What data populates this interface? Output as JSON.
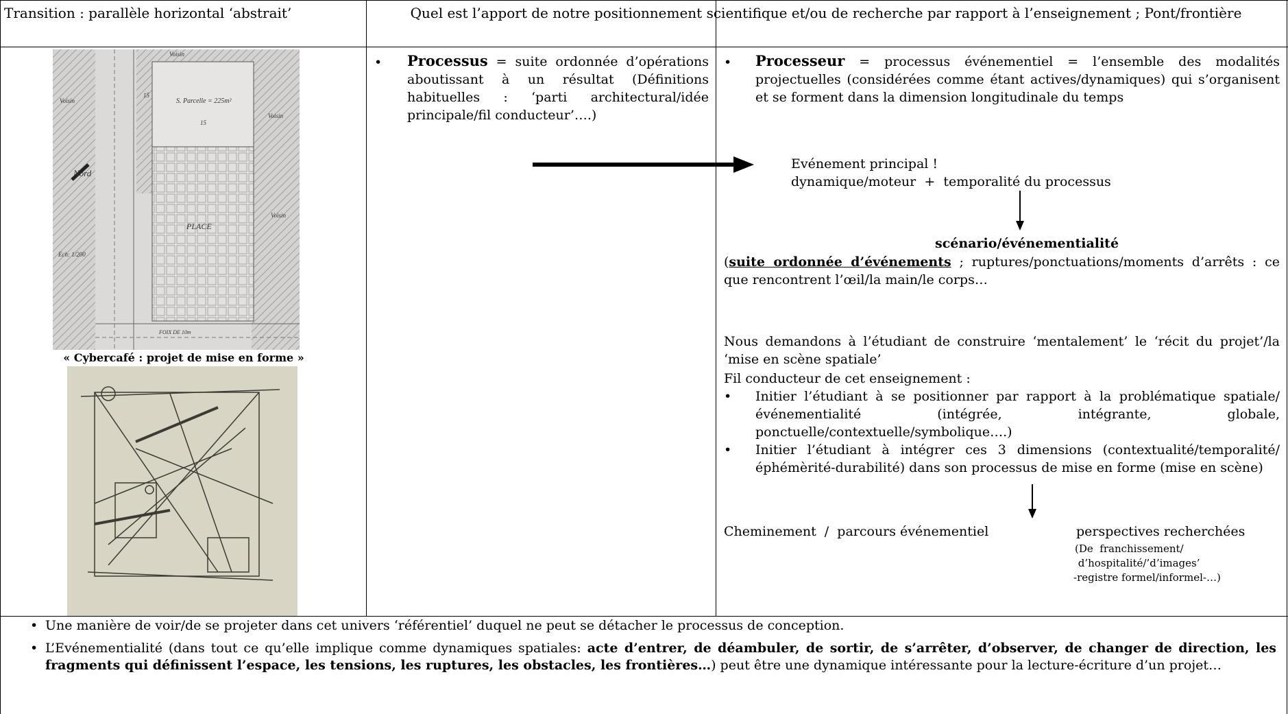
{
  "header": {
    "left": "Transition : parallèle horizontal ‘abstrait’",
    "right": "Quel est l’apport de notre positionnement scientifique et/ou de recherche par rapport à l’enseignement ; Pont/frontière"
  },
  "illustrations": {
    "plan_labels": [
      "Voisin",
      "Voisin",
      "S. Parcelle = 225m²",
      "15",
      "15",
      "Voisin",
      "Nord",
      "PLACE",
      "Voisin",
      "Ech: 1/200",
      "FOIX DE 10m"
    ],
    "caption": "« Cybercafé : projet de mise en forme »"
  },
  "process": {
    "term": "Processus",
    "text": " = suite ordonnée d’opérations aboutissant à un résultat (Définitions habituelles : ‘parti architectural/idée principale/fil conducteur’….)"
  },
  "processor": {
    "term": "Processeur",
    "text": " = processus événementiel = l’ensemble des modalités projectuelles (considérées comme étant actives/dynamiques) qui s’organisent et se forment dans la dimension longitudinale du temps",
    "event": "Evénement principal !",
    "event_detail": "dynamique/moteur  +  temporalité du processus",
    "scenario": "scénario/événementialité",
    "sequence_open": "(",
    "sequence_term": "suite ordonnée d’événements",
    "sequence_text": " ; ruptures/ponctuations/moments d’arrêts : ce que rencontrent l’œil/la main/le corps…",
    "request": "Nous demandons à l’étudiant de construire ‘mentalement’ le ‘récit du projet’/la ‘mise en scène spatiale’",
    "guideline": "Fil conducteur de cet enseignement :",
    "goals": [
      "Initier l’étudiant à se positionner par rapport à la problématique spatiale/événementialité (intégrée, intégrante, globale, ponctuelle/contextuelle/symbolique….)",
      "Initier l’étudiant à intégrer ces 3 dimensions (contextualité/temporalité/éphémèrité-durabilité) dans son processus de mise en forme (mise en scène)"
    ],
    "path": "Cheminement  /  parcours événementiel",
    "perspectives": "perspectives recherchées",
    "perspective_notes": [
      "(De  franchissement/",
      " d’hospitalité/’d’images’",
      "-registre formel/informel-…)"
    ]
  },
  "conclusions": [
    {
      "text": "Une manière de voir/de se projeter dans cet univers ‘référentiel’ duquel ne peut se détacher le processus de conception."
    },
    {
      "before": "L’Evénementialité (dans tout ce qu’elle implique comme dynamiques spatiales: ",
      "bold": "acte d’entrer, de déambuler, de sortir, de s’arrêter, d’observer, de changer de direction, les fragments qui définissent l’espace, les tensions, les ruptures, les obstacles, les frontières…",
      "after": ") peut être une dynamique intéressante pour la lecture-écriture d’un projet…"
    }
  ]
}
